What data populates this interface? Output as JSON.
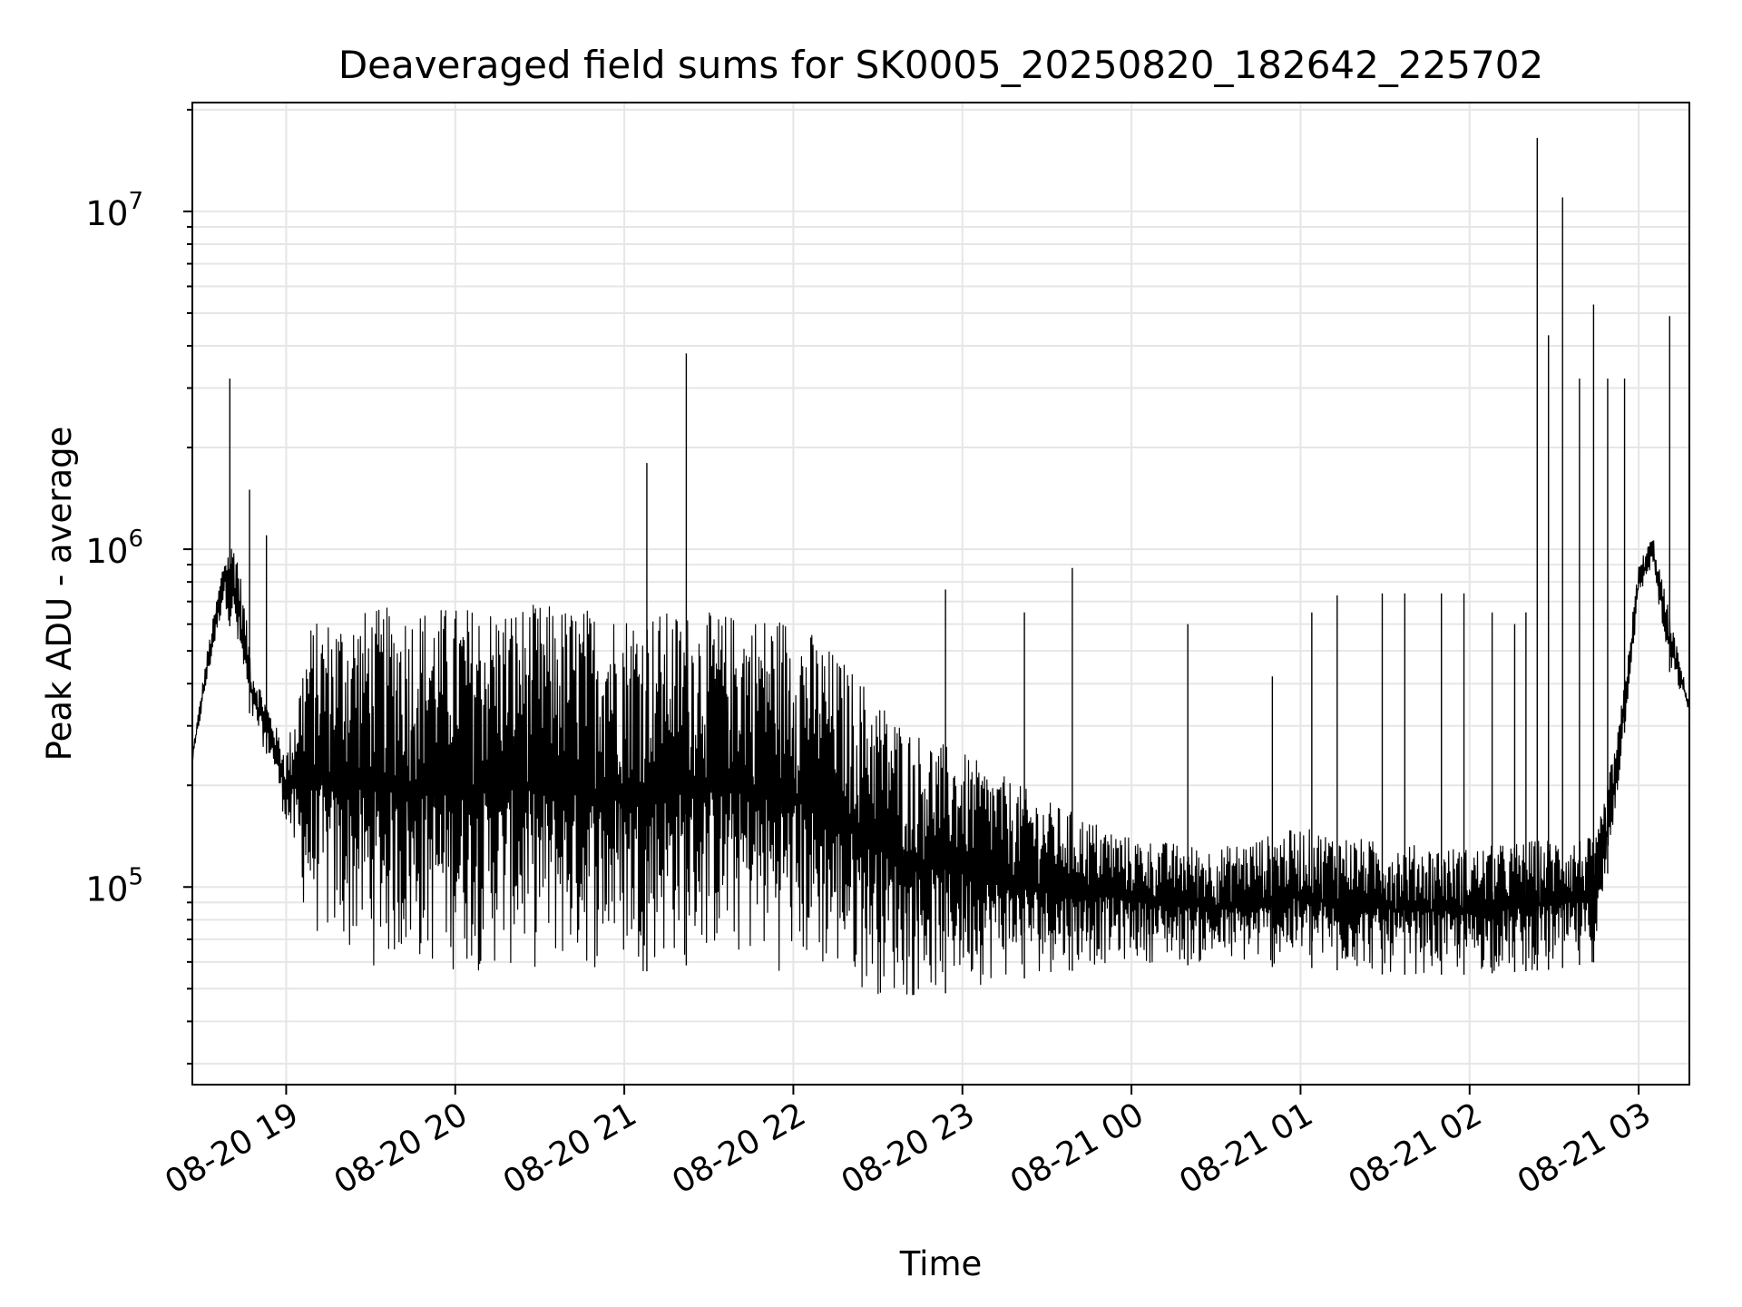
{
  "chart_data": {
    "type": "line",
    "title": "Deaveraged field sums for SK0005_20250820_182642_225702",
    "xlabel": "Time",
    "ylabel": "Peak ADU - average",
    "yscale": "log",
    "xlim": [
      "2025-08-20 18:26:42",
      "2025-08-21 03:18:00"
    ],
    "ylim": [
      26000,
      21000000
    ],
    "grid": true,
    "line_color": "#000000",
    "grid_color": "#e6e6e6",
    "xticks": [
      {
        "t": "2025-08-20 19:00",
        "label": "08-20 19"
      },
      {
        "t": "2025-08-20 20:00",
        "label": "08-20 20"
      },
      {
        "t": "2025-08-20 21:00",
        "label": "08-20 21"
      },
      {
        "t": "2025-08-20 22:00",
        "label": "08-20 22"
      },
      {
        "t": "2025-08-20 23:00",
        "label": "08-20 23"
      },
      {
        "t": "2025-08-21 00:00",
        "label": "08-21 00"
      },
      {
        "t": "2025-08-21 01:00",
        "label": "08-21 01"
      },
      {
        "t": "2025-08-21 02:00",
        "label": "08-21 02"
      },
      {
        "t": "2025-08-21 03:00",
        "label": "08-21 03"
      }
    ],
    "yticks": [
      {
        "v": 100000,
        "base": "10",
        "exp": "5"
      },
      {
        "v": 1000000,
        "base": "10",
        "exp": "6"
      },
      {
        "v": 10000000,
        "base": "10",
        "exp": "7"
      }
    ],
    "series": [
      {
        "envelope": {
          "x": [
            "2025-08-20 18:26:42",
            "2025-08-20 18:32",
            "2025-08-20 18:38",
            "2025-08-20 18:42",
            "2025-08-20 18:48",
            "2025-08-20 18:55",
            "2025-08-20 19:00",
            "2025-08-20 19:08",
            "2025-08-20 19:20",
            "2025-08-20 19:40",
            "2025-08-20 20:00",
            "2025-08-20 20:30",
            "2025-08-20 21:00",
            "2025-08-20 21:30",
            "2025-08-20 22:00",
            "2025-08-20 22:20",
            "2025-08-20 22:40",
            "2025-08-20 23:00",
            "2025-08-20 23:30",
            "2025-08-21 00:00",
            "2025-08-21 00:30",
            "2025-08-21 01:00",
            "2025-08-21 01:30",
            "2025-08-21 02:00",
            "2025-08-21 02:30",
            "2025-08-21 02:45",
            "2025-08-21 02:53",
            "2025-08-21 03:00",
            "2025-08-21 03:05",
            "2025-08-21 03:10",
            "2025-08-21 03:18"
          ],
          "high": [
            250000,
            500000,
            950000,
            1100000,
            450000,
            320000,
            250000,
            600000,
            650000,
            680000,
            680000,
            690000,
            660000,
            650000,
            640000,
            450000,
            300000,
            250000,
            180000,
            140000,
            130000,
            150000,
            135000,
            130000,
            140000,
            140000,
            300000,
            900000,
            1100000,
            700000,
            350000
          ],
          "low": [
            230000,
            400000,
            700000,
            500000,
            300000,
            230000,
            150000,
            70000,
            60000,
            55000,
            55000,
            55000,
            55000,
            60000,
            55000,
            50000,
            45000,
            50000,
            55000,
            60000,
            58000,
            58000,
            55000,
            55000,
            57000,
            60000,
            200000,
            700000,
            900000,
            450000,
            330000
          ]
        },
        "spikes": [
          {
            "t": "2025-08-20 18:40",
            "v": 3200000
          },
          {
            "t": "2025-08-20 18:47",
            "v": 1500000
          },
          {
            "t": "2025-08-20 18:53",
            "v": 1100000
          },
          {
            "t": "2025-08-20 21:08",
            "v": 1800000
          },
          {
            "t": "2025-08-20 21:22",
            "v": 3800000
          },
          {
            "t": "2025-08-20 22:54",
            "v": 760000
          },
          {
            "t": "2025-08-20 23:22",
            "v": 650000
          },
          {
            "t": "2025-08-20 23:39",
            "v": 880000
          },
          {
            "t": "2025-08-21 00:20",
            "v": 600000
          },
          {
            "t": "2025-08-21 00:50",
            "v": 420000
          },
          {
            "t": "2025-08-21 01:04",
            "v": 650000
          },
          {
            "t": "2025-08-21 01:13",
            "v": 730000
          },
          {
            "t": "2025-08-21 01:29",
            "v": 740000
          },
          {
            "t": "2025-08-21 01:37",
            "v": 740000
          },
          {
            "t": "2025-08-21 01:50",
            "v": 740000
          },
          {
            "t": "2025-08-21 01:58",
            "v": 740000
          },
          {
            "t": "2025-08-21 02:08",
            "v": 650000
          },
          {
            "t": "2025-08-21 02:16",
            "v": 600000
          },
          {
            "t": "2025-08-21 02:20",
            "v": 650000
          },
          {
            "t": "2025-08-21 02:24",
            "v": 16500000
          },
          {
            "t": "2025-08-21 02:28",
            "v": 4300000
          },
          {
            "t": "2025-08-21 02:33",
            "v": 11000000
          },
          {
            "t": "2025-08-21 02:39",
            "v": 3200000
          },
          {
            "t": "2025-08-21 02:44",
            "v": 5300000
          },
          {
            "t": "2025-08-21 02:49",
            "v": 3200000
          },
          {
            "t": "2025-08-21 02:55",
            "v": 3200000
          },
          {
            "t": "2025-08-21 03:11",
            "v": 4900000
          }
        ]
      }
    ]
  }
}
